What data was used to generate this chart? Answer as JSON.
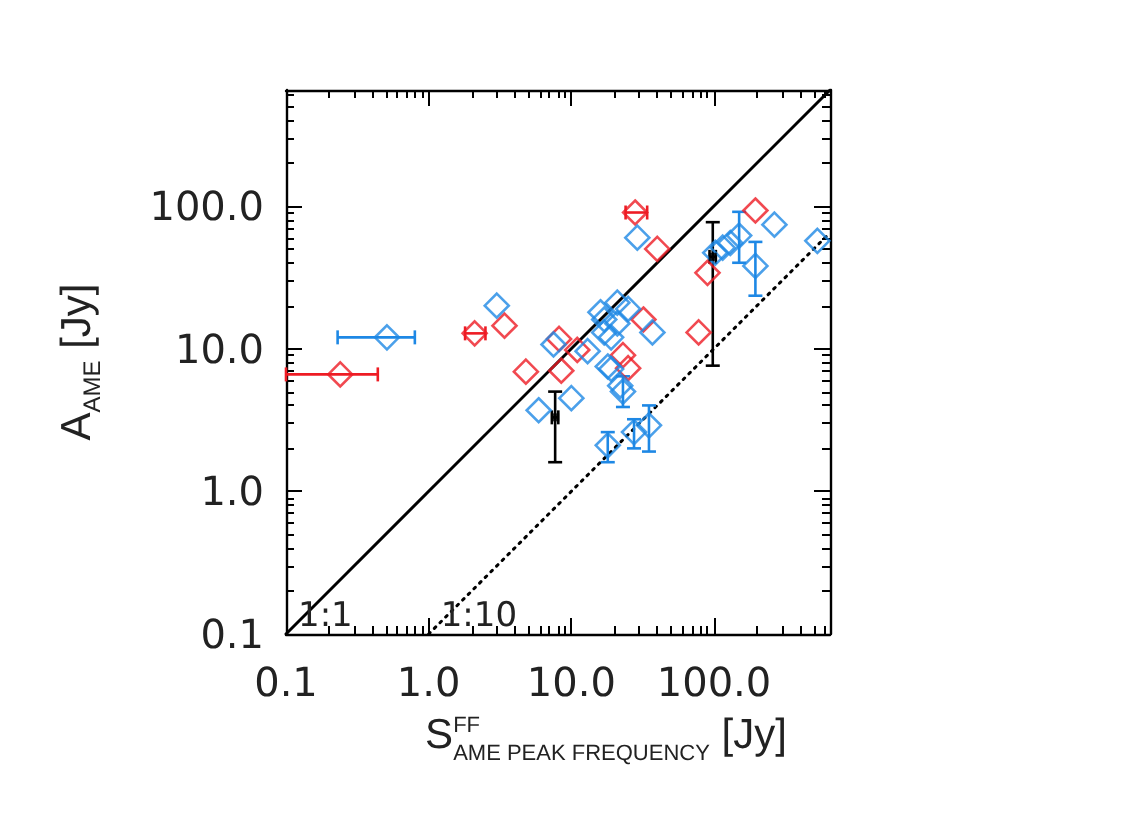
{
  "chart_data": {
    "type": "scatter",
    "xlabel": "S$^{FF}$$_{AME PEAK FREQUENCY}$ [Jy]",
    "ylabel": "A$_{AME}$ [Jy]",
    "log": "xy",
    "marker": "diamond",
    "xlim": [
      0.1,
      650
    ],
    "ylim": [
      0.1,
      650
    ],
    "xticks": [
      0.1,
      {
        "value": 0.2,
        "label": null
      },
      {
        "value": 0.3,
        "label": null
      },
      {
        "value": 0.4,
        "label": null
      },
      {
        "value": 0.5,
        "label": null
      },
      {
        "value": 0.6,
        "label": null
      },
      {
        "value": 0.7,
        "label": null
      },
      {
        "value": 0.8,
        "label": null
      },
      {
        "value": 0.9,
        "label": null
      },
      {
        "value": 1,
        "label": "1.0"
      },
      {
        "value": 2,
        "label": null
      },
      {
        "value": 3,
        "label": null
      },
      {
        "value": 4,
        "label": null
      },
      {
        "value": 5,
        "label": null
      },
      {
        "value": 6,
        "label": null
      },
      {
        "value": 7,
        "label": null
      },
      {
        "value": 8,
        "label": null
      },
      {
        "value": 9,
        "label": null
      },
      {
        "value": 10,
        "label": "10.0"
      },
      {
        "value": 20,
        "label": null
      },
      {
        "value": 30,
        "label": null
      },
      {
        "value": 40,
        "label": null
      },
      {
        "value": 50,
        "label": null
      },
      {
        "value": 60,
        "label": null
      },
      {
        "value": 70,
        "label": null
      },
      {
        "value": 80,
        "label": null
      },
      {
        "value": 90,
        "label": null
      },
      {
        "value": 100,
        "label": "100.0"
      },
      {
        "value": 200,
        "label": null
      },
      {
        "value": 300,
        "label": null
      },
      {
        "value": 400,
        "label": null
      },
      {
        "value": 500,
        "label": null
      },
      {
        "value": 600,
        "label": null
      }
    ],
    "yticks": [
      0.1,
      {
        "value": 0.2,
        "label": null
      },
      {
        "value": 0.3,
        "label": null
      },
      {
        "value": 0.4,
        "label": null
      },
      {
        "value": 0.5,
        "label": null
      },
      {
        "value": 0.6,
        "label": null
      },
      {
        "value": 0.7,
        "label": null
      },
      {
        "value": 0.8,
        "label": null
      },
      {
        "value": 0.9,
        "label": null
      },
      {
        "value": 1,
        "label": "1.0"
      },
      {
        "value": 2,
        "label": null
      },
      {
        "value": 3,
        "label": null
      },
      {
        "value": 4,
        "label": null
      },
      {
        "value": 5,
        "label": null
      },
      {
        "value": 6,
        "label": null
      },
      {
        "value": 7,
        "label": null
      },
      {
        "value": 8,
        "label": null
      },
      {
        "value": 9,
        "label": null
      },
      {
        "value": 10,
        "label": "10.0"
      },
      {
        "value": 20,
        "label": null
      },
      {
        "value": 30,
        "label": null
      },
      {
        "value": 40,
        "label": null
      },
      {
        "value": 50,
        "label": null
      },
      {
        "value": 60,
        "label": null
      },
      {
        "value": 70,
        "label": null
      },
      {
        "value": 80,
        "label": null
      },
      {
        "value": 90,
        "label": null
      },
      {
        "value": 100,
        "label": "100.0"
      },
      {
        "value": 200,
        "label": null
      },
      {
        "value": 300,
        "label": null
      },
      {
        "value": 400,
        "label": null
      },
      {
        "value": 500,
        "label": null
      },
      {
        "value": 600,
        "label": null
      }
    ],
    "series": [
      {
        "type": "line",
        "name": "1:1",
        "color": "#000000",
        "marker": "none",
        "line_style": "solid",
        "x": [
          0.1,
          650
        ],
        "values": [
          0.1,
          650
        ]
      },
      {
        "type": "line",
        "name": "1:10",
        "color": "#000000",
        "marker": "none",
        "line_style": "dotted",
        "x": [
          1,
          650
        ],
        "values": [
          0.1,
          65
        ]
      },
      {
        "color": "#ee1c24",
        "x": [
          0.24,
          2.1,
          3.4,
          4.8,
          8.2,
          8.5,
          11,
          23,
          25,
          28,
          40,
          32,
          78,
          90,
          195
        ],
        "values": [
          6.6,
          12.8,
          14.5,
          6.9,
          11.7,
          7.0,
          9.8,
          9.0,
          7.3,
          90,
          50,
          16,
          13,
          34,
          93
        ],
        "xerrors": [
          [
            0.1,
            0.44
          ],
          [
            1.8,
            2.5
          ],
          null,
          null,
          null,
          null,
          null,
          null,
          null,
          [
            24,
            34
          ],
          null,
          null,
          null,
          null,
          null
        ]
      },
      {
        "color": "#1e88e5",
        "x": [
          0.51,
          3.0,
          7.5,
          5.9,
          10,
          13,
          16,
          21,
          25,
          17,
          19,
          18,
          19,
          22,
          23,
          18,
          27.5,
          35,
          37,
          29,
          102,
          115,
          130,
          150,
          195,
          265,
          530,
          17,
          21
        ],
        "values": [
          12,
          20,
          10.7,
          3.7,
          4.5,
          9.6,
          18,
          21,
          19,
          13,
          12,
          7.5,
          7.2,
          5.5,
          5.0,
          2.1,
          2.6,
          2.9,
          13,
          60,
          47,
          51,
          55,
          62,
          38,
          74,
          57,
          16,
          15
        ],
        "xerrors": [
          [
            0.23,
            0.8
          ],
          null,
          null,
          null,
          null,
          null,
          null,
          null,
          null,
          null,
          null,
          null,
          null,
          null,
          null,
          null,
          null,
          null,
          null,
          null,
          null,
          null,
          null,
          null,
          null,
          null,
          null,
          null,
          null
        ],
        "errors": [
          null,
          null,
          null,
          null,
          null,
          null,
          null,
          null,
          null,
          null,
          null,
          null,
          null,
          null,
          [
            3.9,
            6.4
          ],
          [
            1.6,
            2.6
          ],
          [
            2.0,
            3.2
          ],
          [
            1.9,
            4.0
          ],
          null,
          null,
          null,
          null,
          null,
          [
            40,
            91
          ],
          [
            23.5,
            56
          ],
          null,
          null,
          null,
          null
        ]
      },
      {
        "color": "#000000",
        "marker": "square",
        "x": [
          7.7,
          98
        ],
        "values": [
          3.3,
          44
        ],
        "errors": [
          [
            1.6,
            5.0
          ],
          [
            7.6,
            77
          ]
        ],
        "xerrors": [
          [
            7.3,
            8.1
          ],
          [
            93,
            103
          ]
        ]
      }
    ]
  }
}
